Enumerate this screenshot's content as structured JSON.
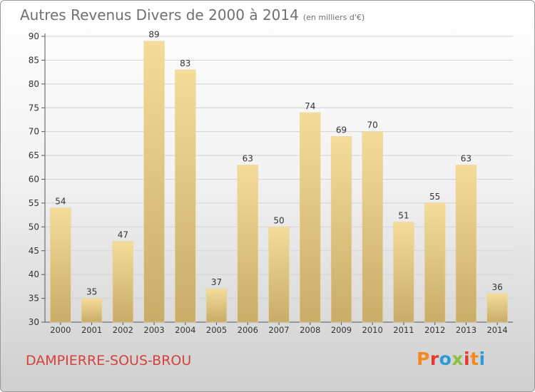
{
  "header": {
    "title": "Autres Revenus Divers de 2000 à 2014",
    "unit": "(en milliers d'€)"
  },
  "footer": {
    "commune": "DAMPIERRE-SOUS-BROU",
    "brand": "Proxiti",
    "brand_colors": [
      "#f28a1e",
      "#e63a2e",
      "#2e9bd6",
      "#8cc13f",
      "#e63a2e",
      "#f28a1e",
      "#2e9bd6"
    ]
  },
  "chart_data": {
    "type": "bar",
    "title": "Autres Revenus Divers de 2000 à 2014",
    "unit": "(en milliers d'€)",
    "categories": [
      "2000",
      "2001",
      "2002",
      "2003",
      "2004",
      "2005",
      "2006",
      "2007",
      "2008",
      "2009",
      "2010",
      "2011",
      "2012",
      "2013",
      "2014"
    ],
    "values": [
      54,
      35,
      47,
      89,
      83,
      37,
      63,
      50,
      74,
      69,
      70,
      51,
      55,
      63,
      36
    ],
    "ylim": [
      30,
      90
    ],
    "yticks": [
      30,
      35,
      40,
      45,
      50,
      55,
      60,
      65,
      70,
      75,
      80,
      85,
      90
    ],
    "grid": true,
    "bar_color_top": "#f5dc9a",
    "bar_color_bottom": "#c8ac68"
  }
}
